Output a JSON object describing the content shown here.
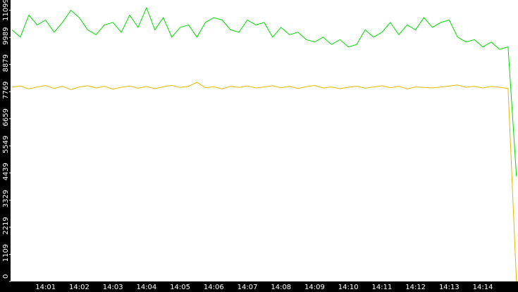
{
  "chart_data": {
    "type": "line",
    "categories": [
      null,
      null,
      null,
      null,
      "14:01",
      null,
      null,
      null,
      "14:02",
      null,
      null,
      null,
      "14:03",
      null,
      null,
      null,
      "14:04",
      null,
      null,
      null,
      "14:05",
      null,
      null,
      null,
      "14:06",
      null,
      null,
      null,
      "14:07",
      null,
      null,
      null,
      "14:08",
      null,
      null,
      null,
      "14:09",
      null,
      null,
      null,
      "14:10",
      null,
      null,
      null,
      "14:11",
      null,
      null,
      null,
      "14:12",
      null,
      null,
      null,
      "14:13",
      null,
      null,
      null,
      "14:14",
      null,
      null,
      null,
      null
    ],
    "series": [
      {
        "color": "#00dd00",
        "values": [
          10300,
          10000,
          10900,
          10500,
          10700,
          10200,
          10600,
          11100,
          10800,
          10300,
          10100,
          10500,
          10600,
          10200,
          10900,
          10400,
          11200,
          10300,
          10800,
          10000,
          10400,
          10500,
          10000,
          10600,
          10800,
          10700,
          10300,
          10200,
          10700,
          10500,
          10600,
          10000,
          10400,
          10100,
          10200,
          9900,
          9800,
          10000,
          9700,
          9900,
          9600,
          9700,
          10300,
          10000,
          10200,
          10600,
          10100,
          10500,
          10300,
          10800,
          10400,
          10600,
          10700,
          10000,
          9800,
          9900,
          9600,
          9800,
          9500,
          9600,
          4300
        ]
      },
      {
        "color": "#e6b800",
        "values": [
          7950,
          8000,
          7880,
          7960,
          8020,
          7900,
          7990,
          7850,
          7960,
          8010,
          7920,
          7990,
          7870,
          7950,
          8000,
          7910,
          7980,
          7890,
          7970,
          8030,
          7940,
          7990,
          8150,
          7930,
          7970,
          7880,
          7990,
          7940,
          8000,
          7920,
          7960,
          8010,
          7930,
          7990,
          7900,
          7970,
          8020,
          7920,
          7960,
          7890,
          7950,
          7990,
          7910,
          7960,
          8010,
          7930,
          7990,
          7880,
          7960,
          7940,
          7920,
          7960,
          8000,
          8040,
          7950,
          7990,
          7920,
          7980,
          7950,
          7900,
          0
        ]
      }
    ],
    "ylim": [
      0,
      11520
    ],
    "yticks": [
      0,
      1109,
      2219,
      3329,
      4439,
      5549,
      6659,
      7769,
      8879,
      9989,
      11099
    ]
  }
}
